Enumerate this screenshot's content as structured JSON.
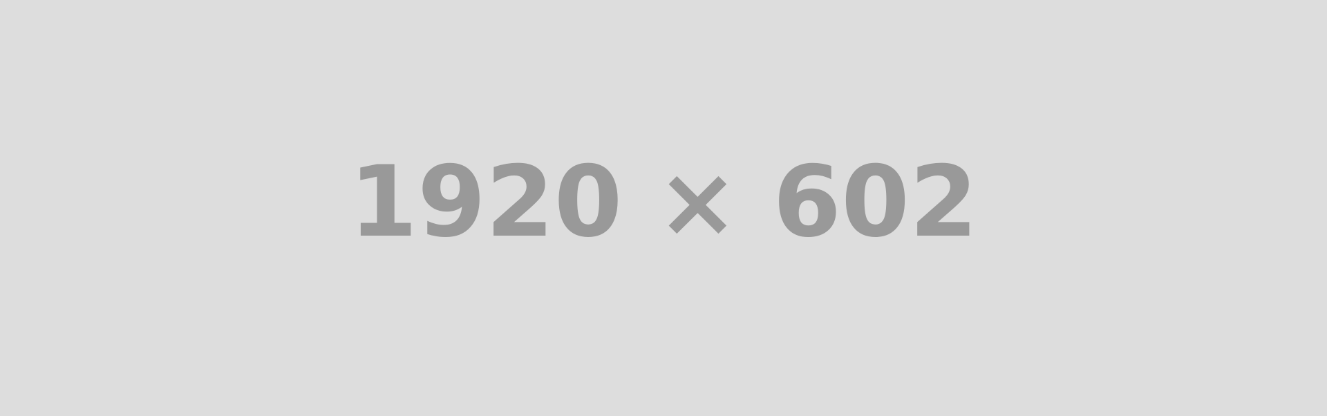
{
  "placeholder": {
    "label": "1920 × 602",
    "background_color": "#dddddd",
    "text_color": "#999999"
  }
}
